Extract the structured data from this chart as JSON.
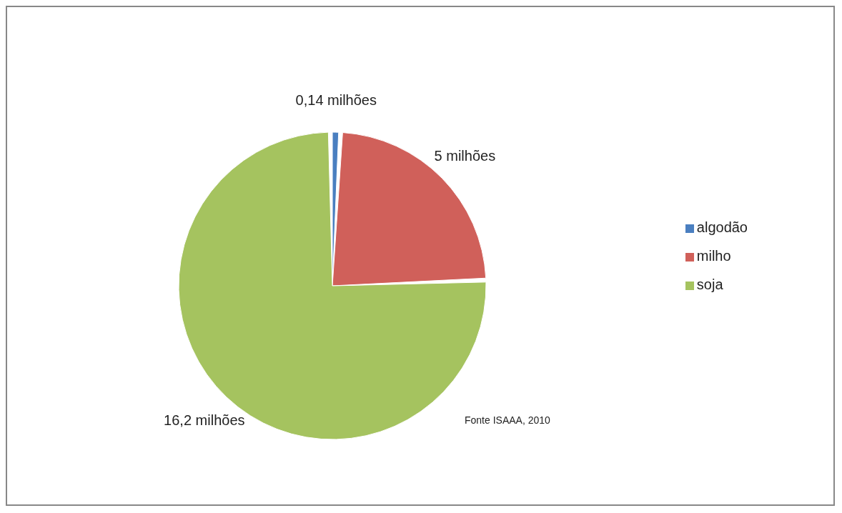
{
  "chart_data": {
    "type": "pie",
    "categories": [
      "algodão",
      "milho",
      "soja"
    ],
    "values": [
      0.14,
      5,
      16.2
    ],
    "colors": [
      "#4a7fc0",
      "#d0605a",
      "#a5c35f"
    ],
    "value_labels": [
      "0,14 milhões",
      "5 milhões",
      "16,2 milhões"
    ],
    "legend": "right",
    "annotations": [
      "Fonte ISAAA, 2010"
    ]
  }
}
